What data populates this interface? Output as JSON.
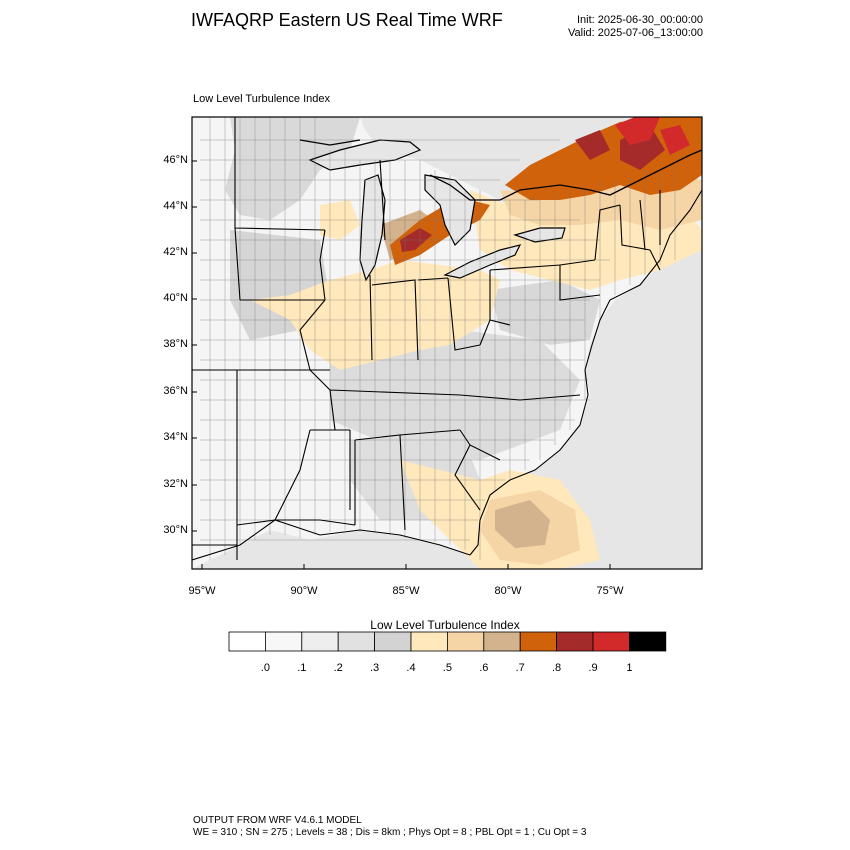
{
  "header": {
    "title": "IWFAQRP Eastern US Real Time WRF",
    "init": "Init: 2025-06-30_00:00:00",
    "valid": "Valid: 2025-07-06_13:00:00"
  },
  "map": {
    "title": "Low Level Turbulence Index",
    "lat_labels": [
      "46°N",
      "44°N",
      "42°N",
      "40°N",
      "38°N",
      "36°N",
      "34°N",
      "32°N",
      "30°N"
    ],
    "lon_labels": [
      "95°W",
      "90°W",
      "85°W",
      "80°W",
      "75°W"
    ],
    "colors": {
      "ocean": "#e6e6e6",
      "land_base": "#f6f6f6",
      "state_border": "#000000",
      "county_border": "#555555"
    }
  },
  "colorbar": {
    "title": "Low Level Turbulence Index",
    "labels": [
      ".0",
      ".1",
      ".2",
      ".3",
      ".4",
      ".5",
      ".6",
      ".7",
      ".8",
      ".9",
      "1"
    ],
    "colors": [
      "#ffffff",
      "#f7f7f7",
      "#eeeeee",
      "#e1e1e1",
      "#d3d3d3",
      "#ffe8bb",
      "#f5d4a6",
      "#d3b38d",
      "#d1620c",
      "#a52a2a",
      "#d22a2a",
      "#000000"
    ]
  },
  "footer": {
    "line1": "OUTPUT FROM WRF V4.6.1 MODEL",
    "line2": "WE = 310 ; SN = 275 ; Levels = 38 ; Dis = 8km ; Phys Opt = 8 ; PBL Opt = 1 ; Cu Opt = 3"
  }
}
